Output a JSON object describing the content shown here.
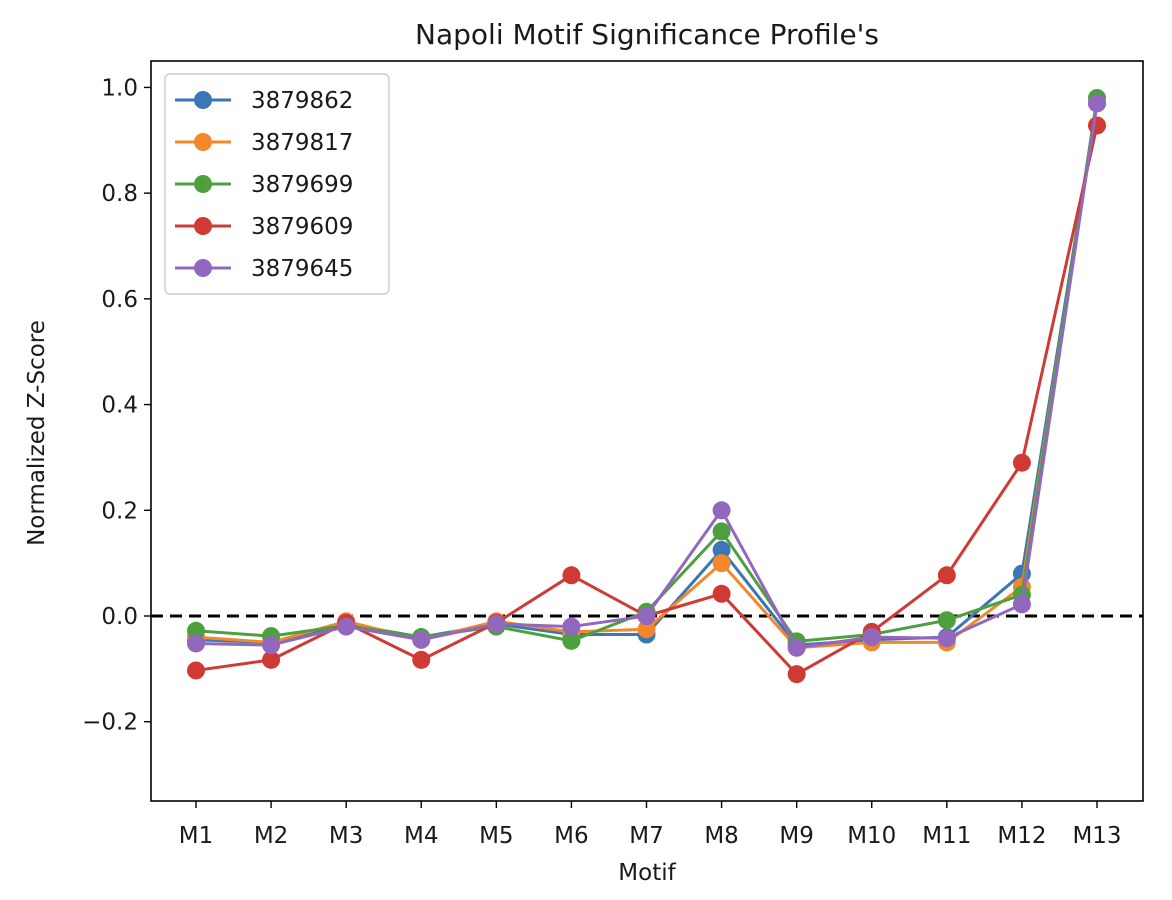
{
  "chart_data": {
    "type": "line",
    "title": "Napoli Motif Significance Profile's",
    "xlabel": "Motif",
    "ylabel": "Normalized Z-Score",
    "categories": [
      "M1",
      "M2",
      "M3",
      "M4",
      "M5",
      "M6",
      "M7",
      "M8",
      "M9",
      "M10",
      "M11",
      "M12",
      "M13"
    ],
    "ylim": [
      -0.35,
      1.05
    ],
    "yticks": [
      -0.2,
      0.0,
      0.2,
      0.4,
      0.6,
      0.8,
      1.0
    ],
    "ytick_labels": [
      "−0.2",
      "0.0",
      "0.2",
      "0.4",
      "0.6",
      "0.8",
      "1.0"
    ],
    "reference_line": {
      "y": 0.0,
      "style": "dashed",
      "color": "#000000"
    },
    "grid": false,
    "legend_position": "top-left",
    "series": [
      {
        "name": "3879862",
        "color": "#3a77b4",
        "values": [
          -0.045,
          -0.05,
          -0.015,
          -0.04,
          -0.015,
          -0.035,
          -0.035,
          0.125,
          -0.055,
          -0.045,
          -0.04,
          0.08,
          0.97
        ]
      },
      {
        "name": "3879817",
        "color": "#f3882a",
        "values": [
          -0.04,
          -0.05,
          -0.01,
          -0.045,
          -0.01,
          -0.03,
          -0.025,
          0.1,
          -0.06,
          -0.05,
          -0.05,
          0.055,
          0.97
        ]
      },
      {
        "name": "3879699",
        "color": "#4e9f3d",
        "values": [
          -0.028,
          -0.038,
          -0.018,
          -0.04,
          -0.02,
          -0.047,
          0.008,
          0.16,
          -0.048,
          -0.035,
          -0.008,
          0.04,
          0.98
        ]
      },
      {
        "name": "3879609",
        "color": "#cf3b34",
        "values": [
          -0.103,
          -0.083,
          -0.013,
          -0.083,
          -0.013,
          0.077,
          0.0,
          0.042,
          -0.11,
          -0.03,
          0.077,
          0.29,
          0.928
        ]
      },
      {
        "name": "3879645",
        "color": "#9168be",
        "values": [
          -0.052,
          -0.055,
          -0.02,
          -0.045,
          -0.015,
          -0.02,
          0.0,
          0.2,
          -0.06,
          -0.04,
          -0.042,
          0.022,
          0.97
        ]
      }
    ]
  }
}
